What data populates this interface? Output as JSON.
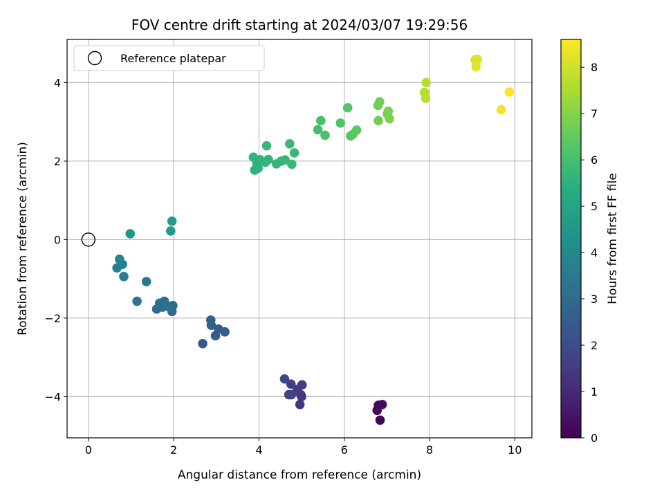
{
  "chart_data": {
    "type": "scatter",
    "title": "FOV centre drift starting at 2024/03/07 19:29:56",
    "xlabel": "Angular distance from reference (arcmin)",
    "ylabel": "Rotation from reference (arcmin)",
    "xlim": [
      -0.5,
      10.4
    ],
    "ylim": [
      -5.05,
      5.1
    ],
    "xticks": [
      0,
      2,
      4,
      6,
      8,
      10
    ],
    "yticks": [
      -4,
      -2,
      0,
      2,
      4
    ],
    "grid": true,
    "legend": {
      "position": "top-left",
      "entries": [
        "Reference platepar"
      ]
    },
    "reference_point": {
      "x": 0,
      "y": 0
    },
    "colorbar": {
      "label": "Hours from first FF file",
      "range": [
        0,
        8.6
      ],
      "ticks": [
        0,
        1,
        2,
        3,
        4,
        5,
        6,
        7,
        8
      ],
      "colormap": "viridis"
    },
    "points": [
      {
        "x": 6.84,
        "y": -4.6,
        "c": 0.1
      },
      {
        "x": 6.77,
        "y": -4.35,
        "c": 0.15
      },
      {
        "x": 6.8,
        "y": -4.22,
        "c": 0.2
      },
      {
        "x": 6.89,
        "y": -4.2,
        "c": 0.25
      },
      {
        "x": 4.96,
        "y": -4.2,
        "c": 1.3
      },
      {
        "x": 5.0,
        "y": -4.0,
        "c": 1.4
      },
      {
        "x": 4.98,
        "y": -3.95,
        "c": 1.45
      },
      {
        "x": 5.01,
        "y": -3.7,
        "c": 1.5
      },
      {
        "x": 4.9,
        "y": -3.82,
        "c": 1.55
      },
      {
        "x": 4.75,
        "y": -3.68,
        "c": 1.6
      },
      {
        "x": 4.7,
        "y": -3.95,
        "c": 1.65
      },
      {
        "x": 4.76,
        "y": -3.95,
        "c": 1.7
      },
      {
        "x": 4.6,
        "y": -3.55,
        "c": 1.8
      },
      {
        "x": 2.68,
        "y": -2.65,
        "c": 2.3
      },
      {
        "x": 2.98,
        "y": -2.45,
        "c": 2.4
      },
      {
        "x": 3.2,
        "y": -2.35,
        "c": 2.45
      },
      {
        "x": 3.05,
        "y": -2.28,
        "c": 2.5
      },
      {
        "x": 2.88,
        "y": -2.18,
        "c": 2.55
      },
      {
        "x": 2.87,
        "y": -2.05,
        "c": 2.6
      },
      {
        "x": 1.96,
        "y": -1.83,
        "c": 2.9
      },
      {
        "x": 1.98,
        "y": -1.68,
        "c": 2.95
      },
      {
        "x": 1.6,
        "y": -1.77,
        "c": 3.0
      },
      {
        "x": 1.74,
        "y": -1.72,
        "c": 3.05
      },
      {
        "x": 1.67,
        "y": -1.62,
        "c": 3.1
      },
      {
        "x": 1.78,
        "y": -1.57,
        "c": 3.15
      },
      {
        "x": 1.87,
        "y": -1.7,
        "c": 3.2
      },
      {
        "x": 1.14,
        "y": -1.57,
        "c": 3.4
      },
      {
        "x": 1.36,
        "y": -1.07,
        "c": 3.5
      },
      {
        "x": 0.83,
        "y": -0.94,
        "c": 3.6
      },
      {
        "x": 0.67,
        "y": -0.72,
        "c": 3.7
      },
      {
        "x": 0.8,
        "y": -0.63,
        "c": 3.75
      },
      {
        "x": 0.73,
        "y": -0.5,
        "c": 3.8
      },
      {
        "x": 0.98,
        "y": 0.15,
        "c": 4.5
      },
      {
        "x": 1.93,
        "y": 0.22,
        "c": 4.6
      },
      {
        "x": 1.96,
        "y": 0.47,
        "c": 4.7
      },
      {
        "x": 3.9,
        "y": 1.77,
        "c": 5.5
      },
      {
        "x": 3.98,
        "y": 1.82,
        "c": 5.52
      },
      {
        "x": 3.95,
        "y": 1.94,
        "c": 5.54
      },
      {
        "x": 3.87,
        "y": 2.1,
        "c": 5.56
      },
      {
        "x": 4.02,
        "y": 2.04,
        "c": 5.58
      },
      {
        "x": 4.15,
        "y": 1.97,
        "c": 5.6
      },
      {
        "x": 4.22,
        "y": 2.04,
        "c": 5.62
      },
      {
        "x": 4.41,
        "y": 1.93,
        "c": 5.64
      },
      {
        "x": 4.52,
        "y": 2.0,
        "c": 5.66
      },
      {
        "x": 4.61,
        "y": 2.03,
        "c": 5.68
      },
      {
        "x": 4.77,
        "y": 1.92,
        "c": 5.7
      },
      {
        "x": 4.18,
        "y": 2.39,
        "c": 5.72
      },
      {
        "x": 4.72,
        "y": 2.44,
        "c": 5.74
      },
      {
        "x": 4.83,
        "y": 2.21,
        "c": 5.76
      },
      {
        "x": 5.38,
        "y": 2.8,
        "c": 6.0
      },
      {
        "x": 5.45,
        "y": 3.03,
        "c": 6.05
      },
      {
        "x": 5.55,
        "y": 2.66,
        "c": 6.1
      },
      {
        "x": 5.91,
        "y": 2.97,
        "c": 6.2
      },
      {
        "x": 6.08,
        "y": 3.36,
        "c": 6.25
      },
      {
        "x": 6.15,
        "y": 2.64,
        "c": 6.3
      },
      {
        "x": 6.2,
        "y": 2.68,
        "c": 6.35
      },
      {
        "x": 6.29,
        "y": 2.79,
        "c": 6.4
      },
      {
        "x": 6.79,
        "y": 3.42,
        "c": 6.7
      },
      {
        "x": 6.83,
        "y": 3.51,
        "c": 6.72
      },
      {
        "x": 6.8,
        "y": 3.03,
        "c": 6.75
      },
      {
        "x": 7.01,
        "y": 3.2,
        "c": 6.8
      },
      {
        "x": 7.03,
        "y": 3.27,
        "c": 6.82
      },
      {
        "x": 7.06,
        "y": 3.08,
        "c": 6.85
      },
      {
        "x": 7.88,
        "y": 3.75,
        "c": 7.6
      },
      {
        "x": 7.91,
        "y": 3.6,
        "c": 7.65
      },
      {
        "x": 7.92,
        "y": 4.0,
        "c": 7.7
      },
      {
        "x": 9.07,
        "y": 4.58,
        "c": 8.1
      },
      {
        "x": 9.12,
        "y": 4.59,
        "c": 8.15
      },
      {
        "x": 9.09,
        "y": 4.41,
        "c": 8.2
      },
      {
        "x": 9.68,
        "y": 3.31,
        "c": 8.45
      },
      {
        "x": 9.87,
        "y": 3.76,
        "c": 8.5
      }
    ]
  }
}
